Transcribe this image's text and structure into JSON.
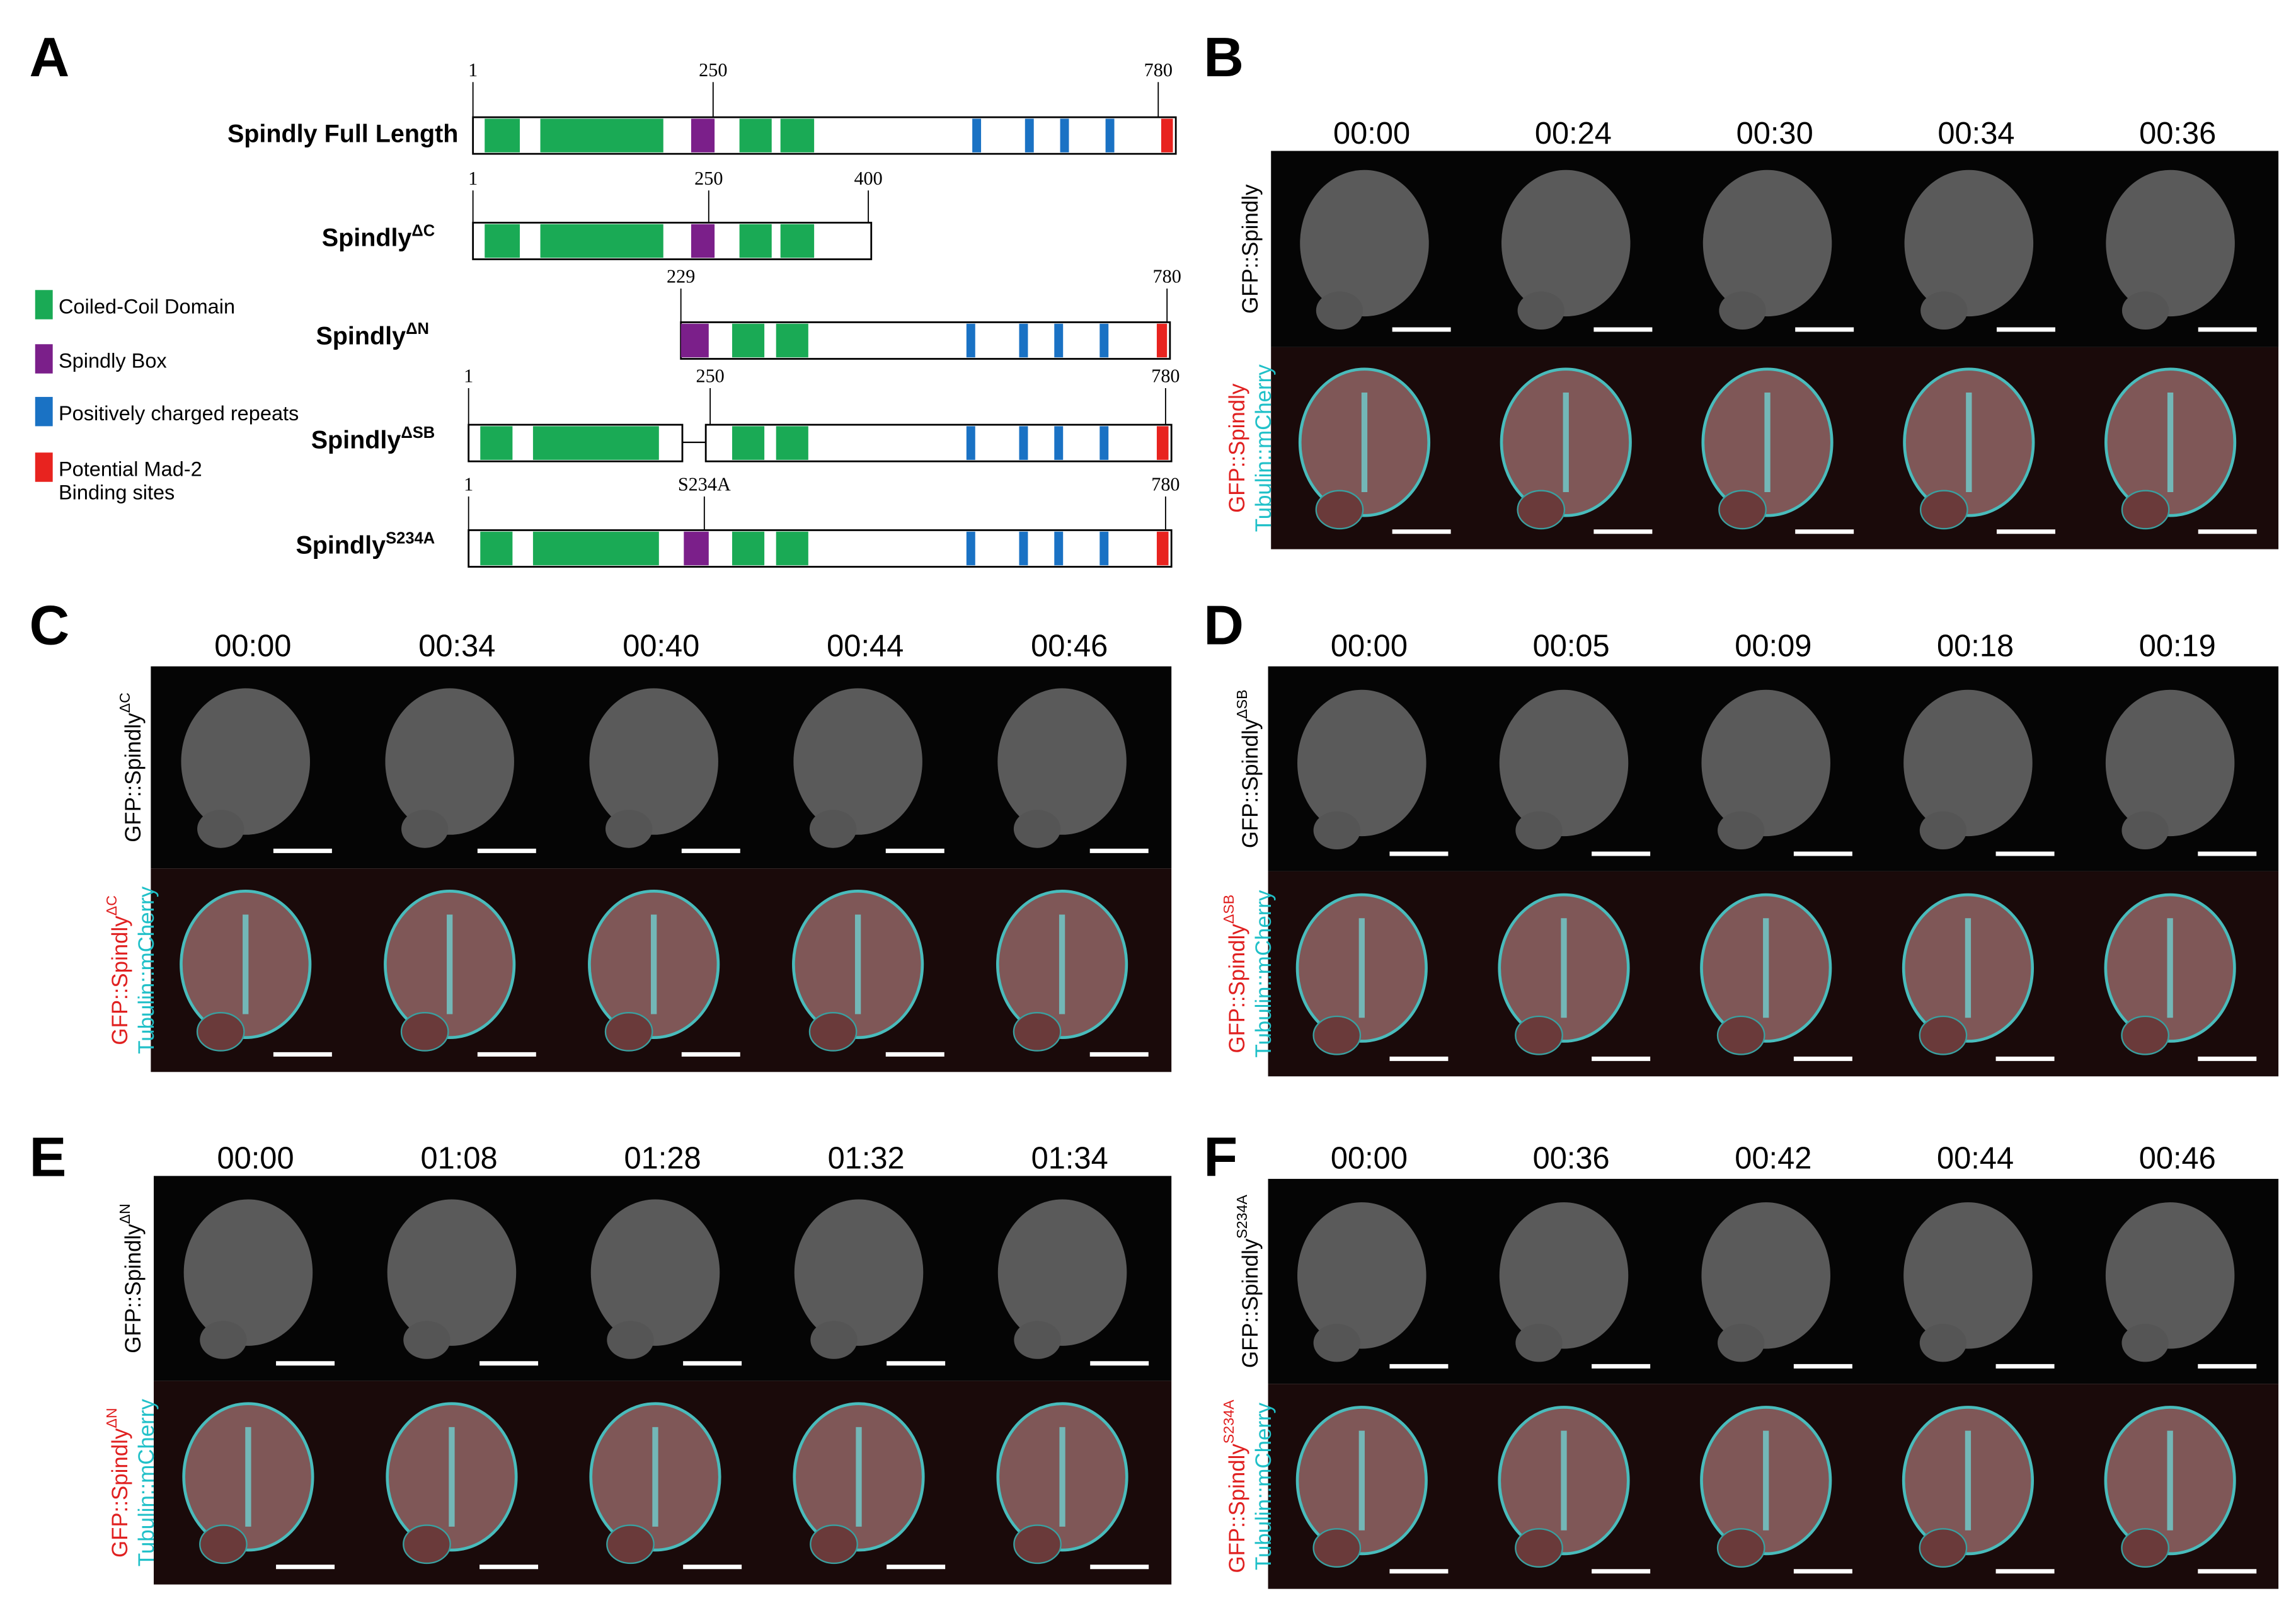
{
  "panel_a": {
    "label": "A",
    "constructs": [
      {
        "name": "Spindly Full  Length",
        "positions": [
          "1",
          "250",
          "780"
        ]
      },
      {
        "name": "Spindly",
        "sup": "ΔC",
        "positions": [
          "1",
          "250",
          "400"
        ]
      },
      {
        "name": "Spindly",
        "sup": "ΔN",
        "positions": [
          "229",
          "780"
        ]
      },
      {
        "name": "Spindly",
        "sup": "ΔSB",
        "positions": [
          "1",
          "250",
          "780"
        ]
      },
      {
        "name": "Spindly",
        "sup": "S234A",
        "positions": [
          "1",
          "S234A",
          "780"
        ]
      }
    ],
    "legend": [
      "Coiled-Coil Domain",
      "Spindly Box",
      "Positively charged repeats",
      "Potential Mad-2",
      "Binding sites"
    ]
  },
  "image_panels": [
    {
      "label": "B",
      "times": [
        "00:00",
        "00:24",
        "00:30",
        "00:34",
        "00:36"
      ],
      "top_channel": {
        "text": "GFP::Spindly"
      },
      "bottom_channel": {
        "text": "GFP::Spindly",
        "second": "Tubulin::mCherry"
      }
    },
    {
      "label": "C",
      "times": [
        "00:00",
        "00:34",
        "00:40",
        "00:44",
        "00:46"
      ],
      "top_channel": {
        "text": "GFP::Spindly",
        "sup": "ΔC"
      },
      "bottom_channel": {
        "text": "GFP::Spindly",
        "sup": "ΔC",
        "second": "Tubulin::mCherry"
      }
    },
    {
      "label": "D",
      "times": [
        "00:00",
        "00:05",
        "00:09",
        "00:18",
        "00:19"
      ],
      "top_channel": {
        "text": "GFP::Spindly",
        "sup": "ΔSB"
      },
      "bottom_channel": {
        "text": "GFP::Spindly",
        "sup": "ΔSB",
        "second": "Tubulin::mCherry"
      }
    },
    {
      "label": "E",
      "times": [
        "00:00",
        "01:08",
        "01:28",
        "01:32",
        "01:34"
      ],
      "top_channel": {
        "text": "GFP::Spindly",
        "sup": "ΔN"
      },
      "bottom_channel": {
        "text": "GFP::Spindly",
        "sup": "ΔN",
        "second": "Tubulin::mCherry"
      }
    },
    {
      "label": "F",
      "times": [
        "00:00",
        "00:36",
        "00:42",
        "00:44",
        "00:46"
      ],
      "top_channel": {
        "text": "GFP::Spindly",
        "sup": "S234A"
      },
      "bottom_channel": {
        "text": "GFP::Spindly",
        "sup": "S234A",
        "second": "Tubulin::mCherry"
      }
    }
  ]
}
